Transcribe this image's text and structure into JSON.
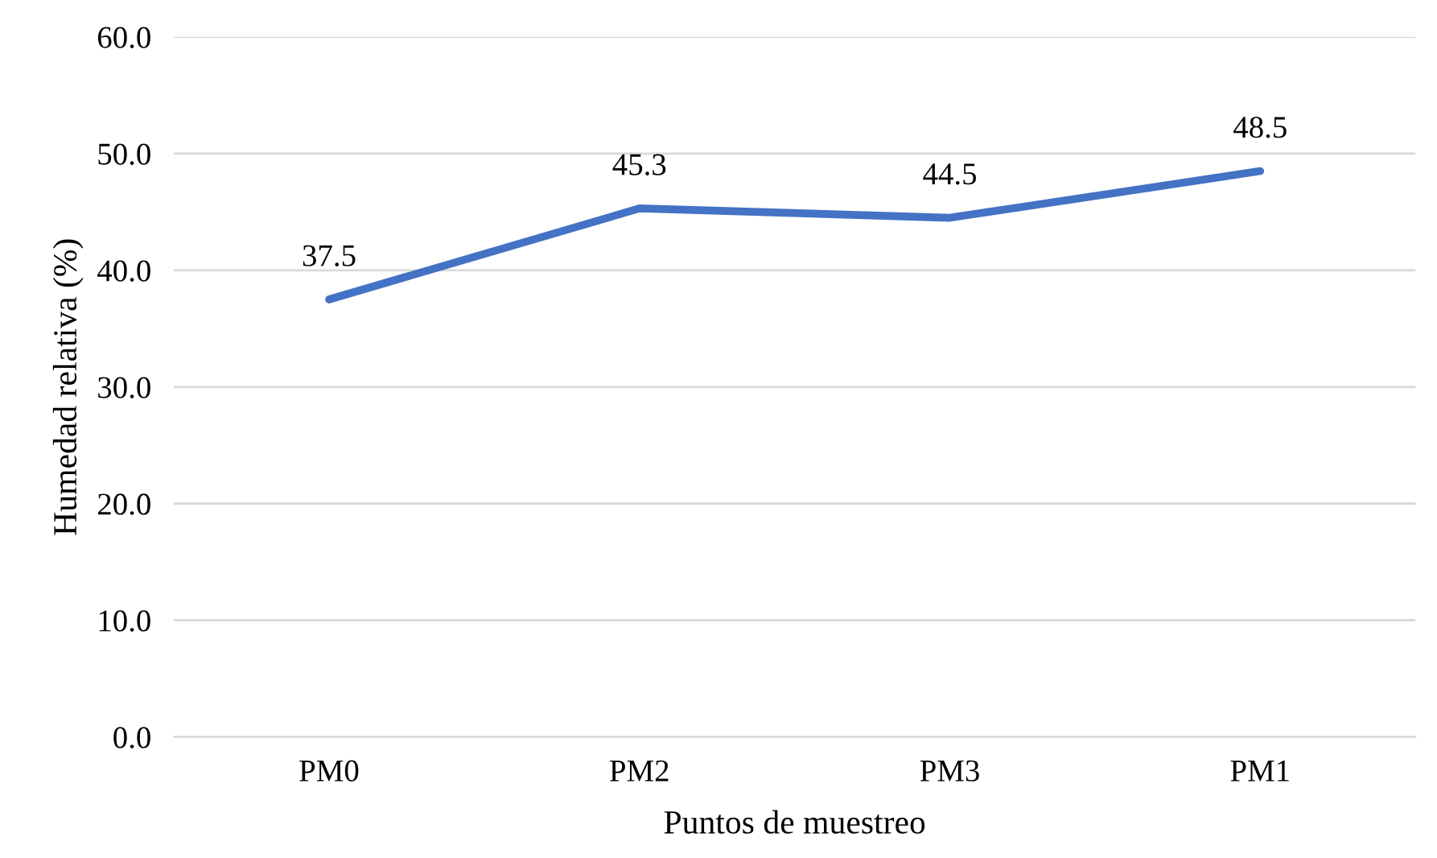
{
  "chart_data": {
    "type": "line",
    "xlabel": "Puntos de muestreo",
    "ylabel": "Humedad relativa (%)",
    "categories": [
      "PM0",
      "PM2",
      "PM3",
      "PM1"
    ],
    "series": [
      {
        "color": "#4472c4",
        "values": [
          37.5,
          45.3,
          44.5,
          48.5
        ]
      }
    ],
    "ylim": [
      0,
      60
    ],
    "yticks": [
      {
        "value": 0,
        "label": "0.0"
      },
      {
        "value": 10,
        "label": "10.0"
      },
      {
        "value": 20,
        "label": "20.0"
      },
      {
        "value": 30,
        "label": "30.0"
      },
      {
        "value": 40,
        "label": "40.0"
      },
      {
        "value": 50,
        "label": "50.0"
      },
      {
        "value": 60,
        "label": "60.0"
      }
    ],
    "grid": "y",
    "data_labels": true
  }
}
